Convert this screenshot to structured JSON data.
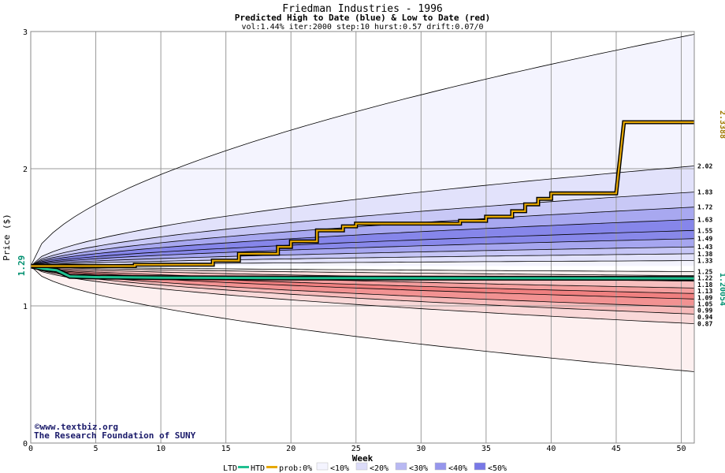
{
  "chart_data": {
    "type": "area",
    "title": "Friedman Industries - 1996",
    "subtitle": "Predicted High to Date (blue) &  Low to Date (red)",
    "params": "vol:1.44% iter:2000 step:10 hurst:0.57 drift:0.07/0",
    "xlabel": "Week",
    "ylabel": "Price ($)",
    "xlim": [
      0,
      51
    ],
    "ylim": [
      0,
      3
    ],
    "x_ticks": [
      0,
      5,
      10,
      15,
      20,
      25,
      30,
      35,
      40,
      45,
      50
    ],
    "y_ticks": [
      0,
      1,
      2,
      3
    ],
    "grid": true,
    "start_price": "1.29",
    "htd_final_label": "2.3388",
    "ltd_final_label": "1.20054",
    "right_labels": [
      "2.02",
      "1.83",
      "1.72",
      "1.63",
      "1.55",
      "1.49",
      "1.43",
      "1.38",
      "1.33",
      "1.25",
      "1.22",
      "1.18",
      "1.13",
      "1.09",
      "1.05",
      "0.99",
      "0.94",
      "0.87"
    ],
    "high_quantiles": [
      {
        "end": 2.98,
        "prob": "0%"
      },
      {
        "end": 2.02,
        "prob": "10%"
      },
      {
        "end": 1.83,
        "prob": "20%"
      },
      {
        "end": 1.72,
        "prob": "30%"
      },
      {
        "end": 1.63,
        "prob": "40%"
      },
      {
        "end": 1.55,
        "prob": "50%"
      },
      {
        "end": 1.49,
        "prob": "40%"
      },
      {
        "end": 1.43,
        "prob": "30%"
      },
      {
        "end": 1.38,
        "prob": "20%"
      },
      {
        "end": 1.33,
        "prob": "10%"
      },
      {
        "end": 1.29,
        "prob": "0%"
      }
    ],
    "low_quantiles": [
      {
        "end": 1.25,
        "prob": "0%"
      },
      {
        "end": 1.22,
        "prob": "10%"
      },
      {
        "end": 1.18,
        "prob": "20%"
      },
      {
        "end": 1.13,
        "prob": "30%"
      },
      {
        "end": 1.09,
        "prob": "40%"
      },
      {
        "end": 1.05,
        "prob": "50%"
      },
      {
        "end": 0.99,
        "prob": "40%"
      },
      {
        "end": 0.94,
        "prob": "30%"
      },
      {
        "end": 0.87,
        "prob": "20%"
      },
      {
        "end": 0.52,
        "prob": "10%"
      }
    ],
    "htd_path": [
      [
        0,
        1.29
      ],
      [
        8,
        1.29
      ],
      [
        8,
        1.3
      ],
      [
        14,
        1.3
      ],
      [
        14,
        1.33
      ],
      [
        16,
        1.33
      ],
      [
        16,
        1.38
      ],
      [
        19,
        1.38
      ],
      [
        19,
        1.43
      ],
      [
        20,
        1.43
      ],
      [
        20,
        1.47
      ],
      [
        22,
        1.47
      ],
      [
        22,
        1.55
      ],
      [
        24,
        1.55
      ],
      [
        24,
        1.58
      ],
      [
        25,
        1.58
      ],
      [
        25,
        1.6
      ],
      [
        33,
        1.6
      ],
      [
        33,
        1.62
      ],
      [
        35,
        1.62
      ],
      [
        35,
        1.65
      ],
      [
        37,
        1.65
      ],
      [
        37,
        1.69
      ],
      [
        38,
        1.69
      ],
      [
        38,
        1.74
      ],
      [
        39,
        1.74
      ],
      [
        39,
        1.78
      ],
      [
        40,
        1.78
      ],
      [
        40,
        1.82
      ],
      [
        45,
        1.82
      ],
      [
        45.6,
        2.3388
      ],
      [
        51,
        2.3388
      ]
    ],
    "ltd_path": [
      [
        0,
        1.29
      ],
      [
        1,
        1.27
      ],
      [
        2,
        1.26
      ],
      [
        3,
        1.215
      ],
      [
        5,
        1.21
      ],
      [
        10,
        1.205
      ],
      [
        20,
        1.203
      ],
      [
        51,
        1.20054
      ]
    ]
  },
  "legend": {
    "ltd_label": "LTD",
    "htd_label": "HTD",
    "prob_label": "prob:0%",
    "items": [
      {
        "label": "<10%",
        "color": "#f4f4ff"
      },
      {
        "label": "<20%",
        "color": "#dcdcf8"
      },
      {
        "label": "<30%",
        "color": "#b8b8f2"
      },
      {
        "label": "<40%",
        "color": "#9696ec"
      },
      {
        "label": "<50%",
        "color": "#7878e6"
      }
    ],
    "ltd_color": "#20c090",
    "htd_color": "#e6a800"
  },
  "colors": {
    "high_fills": [
      "#f4f4fe",
      "#e2e2fb",
      "#c8c8f6",
      "#a8a8f0",
      "#8686ea",
      "#8888ea",
      "#a6a6f0",
      "#c6c6f6",
      "#e2e2fb",
      "#f4f4fe"
    ],
    "low_fills": [
      "#f6eeee",
      "#fadcdc",
      "#f7bfbf",
      "#f49e9e",
      "#f08080",
      "#f29292",
      "#f6baba",
      "#f9d8d8",
      "#fdf0f0"
    ],
    "htd_label_color": "#a07800",
    "ltd_label_color": "#009070",
    "start_label_color": "#009070"
  },
  "credit": {
    "line1": "©www.textbiz.org",
    "line2": "The Research Foundation of SUNY"
  }
}
